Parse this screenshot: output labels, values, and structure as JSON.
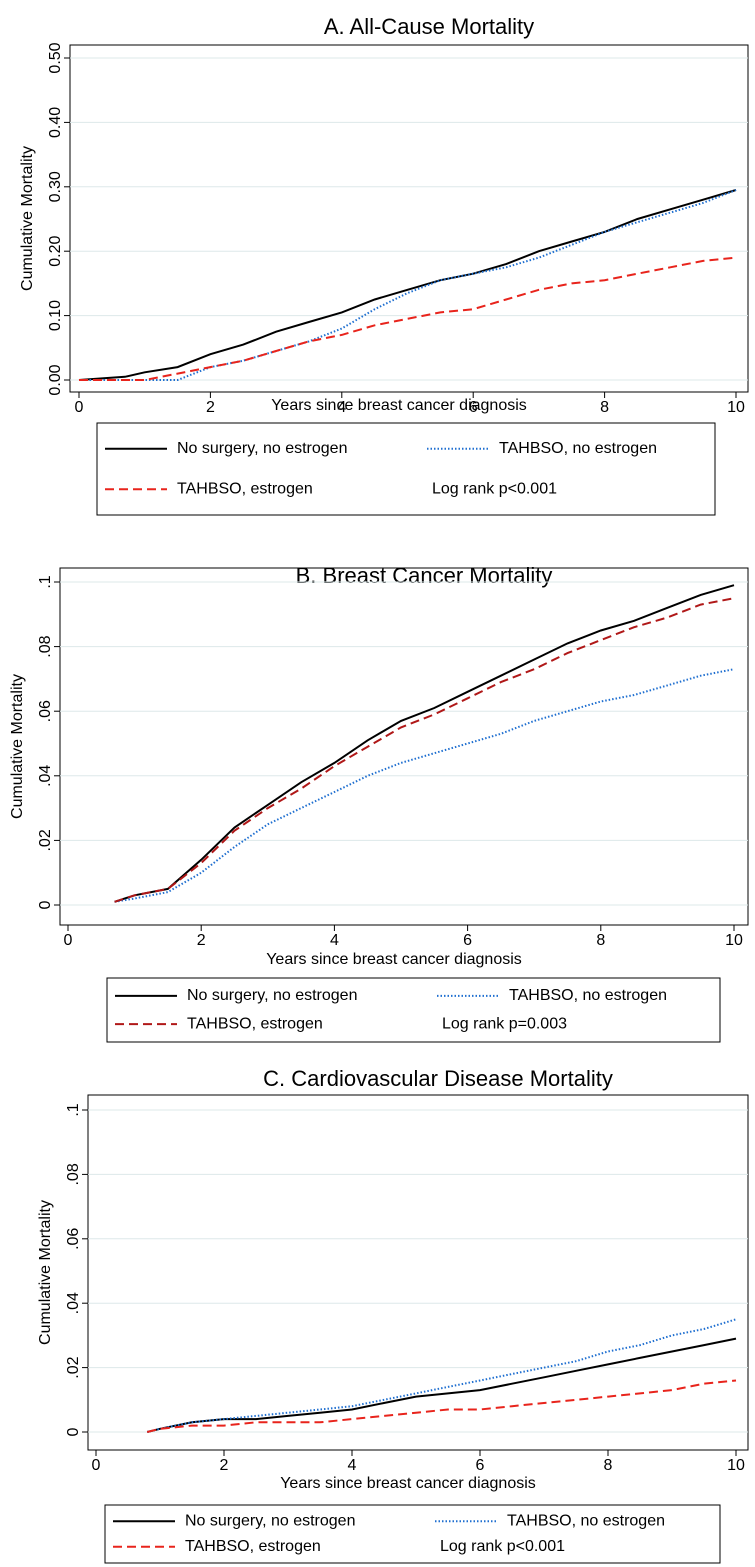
{
  "chart_data": [
    {
      "type": "line",
      "title": "A. All-Cause Mortality",
      "x_label": "Years since breast cancer diagnosis",
      "y_label": "Cumulative Mortality",
      "xlim": [
        0,
        10
      ],
      "xticks": [
        0,
        2,
        4,
        6,
        8,
        10
      ],
      "ylim": [
        0,
        0.5
      ],
      "yticks": [
        {
          "value": 0,
          "label": "0.00"
        },
        {
          "value": 0.1,
          "label": "0.10"
        },
        {
          "value": 0.2,
          "label": "0.20"
        },
        {
          "value": 0.3,
          "label": "0.30"
        },
        {
          "value": 0.4,
          "label": "0.40"
        },
        {
          "value": 0.5,
          "label": "0.50"
        }
      ],
      "grid": true,
      "annotation": "Log rank p<0.001",
      "x": [
        0,
        0.7,
        1,
        1.5,
        2,
        2.5,
        3,
        3.5,
        4,
        4.5,
        5,
        5.5,
        6,
        6.5,
        7,
        7.5,
        8,
        8.5,
        9,
        9.5,
        10
      ],
      "series": [
        {
          "name": "No surgery, no estrogen",
          "color": "#000000",
          "style": "solid",
          "values": [
            0,
            0.005,
            0.012,
            0.02,
            0.04,
            0.055,
            0.075,
            0.09,
            0.105,
            0.125,
            0.14,
            0.155,
            0.165,
            0.18,
            0.2,
            0.215,
            0.23,
            0.25,
            0.265,
            0.28,
            0.295
          ]
        },
        {
          "name": "TAHBSO, no estrogen",
          "color": "#1f6fd0",
          "style": "dotted",
          "values": [
            0,
            0,
            0,
            0,
            0.02,
            0.03,
            0.045,
            0.06,
            0.08,
            0.11,
            0.135,
            0.155,
            0.165,
            0.175,
            0.19,
            0.21,
            0.23,
            0.245,
            0.26,
            0.275,
            0.295
          ]
        },
        {
          "name": "TAHBSO, estrogen",
          "color": "#e8241c",
          "style": "dashed",
          "values": [
            0,
            0,
            0,
            0.01,
            0.02,
            0.03,
            0.045,
            0.06,
            0.07,
            0.085,
            0.095,
            0.105,
            0.11,
            0.125,
            0.14,
            0.15,
            0.155,
            0.165,
            0.175,
            0.185,
            0.19
          ]
        }
      ]
    },
    {
      "type": "line",
      "title": "B. Breast Cancer Mortality",
      "x_label": "Years since breast cancer diagnosis",
      "y_label": "Cumulative Mortality",
      "xlim": [
        0,
        10
      ],
      "xticks": [
        0,
        2,
        4,
        6,
        8,
        10
      ],
      "ylim": [
        0,
        0.1
      ],
      "yticks": [
        0,
        {
          "value": 0.02,
          "label": ".02"
        },
        {
          "value": 0.04,
          "label": ".04"
        },
        {
          "value": 0.06,
          "label": ".06"
        },
        {
          "value": 0.08,
          "label": ".08"
        },
        {
          "value": 0.1,
          "label": ".1"
        }
      ],
      "grid": true,
      "annotation": "Log rank p=0.003",
      "x": [
        0.7,
        1,
        1.5,
        2,
        2.5,
        3,
        3.5,
        4,
        4.5,
        5,
        5.5,
        6,
        6.5,
        7,
        7.5,
        8,
        8.5,
        9,
        9.5,
        10
      ],
      "series": [
        {
          "name": "No surgery, no estrogen",
          "color": "#000000",
          "style": "solid",
          "values": [
            0.001,
            0.003,
            0.005,
            0.014,
            0.024,
            0.031,
            0.038,
            0.044,
            0.051,
            0.057,
            0.061,
            0.066,
            0.071,
            0.076,
            0.081,
            0.085,
            0.088,
            0.092,
            0.096,
            0.099
          ]
        },
        {
          "name": "TAHBSO, no estrogen",
          "color": "#1f6fd0",
          "style": "dotted",
          "values": [
            0.001,
            0.002,
            0.004,
            0.01,
            0.018,
            0.025,
            0.03,
            0.035,
            0.04,
            0.044,
            0.047,
            0.05,
            0.053,
            0.057,
            0.06,
            0.063,
            0.065,
            0.068,
            0.071,
            0.073
          ]
        },
        {
          "name": "TAHBSO, estrogen",
          "color": "#b01818",
          "style": "dashed",
          "values": [
            0.001,
            0.003,
            0.005,
            0.013,
            0.023,
            0.03,
            0.036,
            0.043,
            0.049,
            0.055,
            0.059,
            0.064,
            0.069,
            0.073,
            0.078,
            0.082,
            0.086,
            0.089,
            0.093,
            0.095
          ]
        }
      ]
    },
    {
      "type": "line",
      "title": "C. Cardiovascular Disease Mortality",
      "x_label": "Years since breast cancer diagnosis",
      "y_label": "Cumulative Mortality",
      "xlim": [
        0,
        10
      ],
      "xticks": [
        0,
        2,
        4,
        6,
        8,
        10
      ],
      "ylim": [
        0,
        0.1
      ],
      "yticks": [
        0,
        {
          "value": 0.02,
          "label": ".02"
        },
        {
          "value": 0.04,
          "label": ".04"
        },
        {
          "value": 0.06,
          "label": ".06"
        },
        {
          "value": 0.08,
          "label": ".08"
        },
        {
          "value": 0.1,
          "label": ".1"
        }
      ],
      "grid": true,
      "annotation": "Log rank p<0.001",
      "x": [
        0.8,
        1,
        1.5,
        2,
        2.5,
        3,
        3.5,
        4,
        4.5,
        5,
        5.5,
        6,
        6.5,
        7,
        7.5,
        8,
        8.5,
        9,
        9.5,
        10
      ],
      "series": [
        {
          "name": "No surgery, no estrogen",
          "color": "#000000",
          "style": "solid",
          "values": [
            0,
            0.001,
            0.003,
            0.004,
            0.004,
            0.005,
            0.006,
            0.007,
            0.009,
            0.011,
            0.012,
            0.013,
            0.015,
            0.017,
            0.019,
            0.021,
            0.023,
            0.025,
            0.027,
            0.029
          ]
        },
        {
          "name": "TAHBSO, no estrogen",
          "color": "#1f6fd0",
          "style": "dotted",
          "values": [
            0,
            0.001,
            0.003,
            0.004,
            0.005,
            0.006,
            0.007,
            0.008,
            0.01,
            0.012,
            0.014,
            0.016,
            0.018,
            0.02,
            0.022,
            0.025,
            0.027,
            0.03,
            0.032,
            0.035
          ]
        },
        {
          "name": "TAHBSO, estrogen",
          "color": "#e8241c",
          "style": "dashed",
          "values": [
            0,
            0.001,
            0.002,
            0.002,
            0.003,
            0.003,
            0.003,
            0.004,
            0.005,
            0.006,
            0.007,
            0.007,
            0.008,
            0.009,
            0.01,
            0.011,
            0.012,
            0.013,
            0.015,
            0.016
          ]
        }
      ]
    }
  ]
}
